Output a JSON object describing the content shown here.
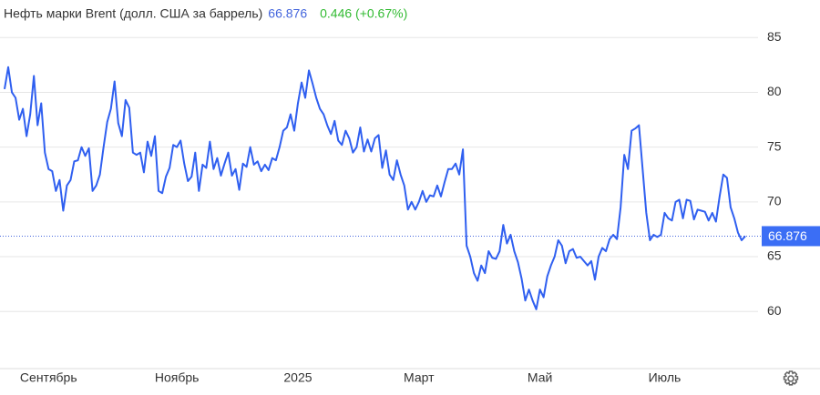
{
  "chart_data": {
    "type": "line",
    "title": "Нефть марки Brent (долл. США за баррель)",
    "last_price": 66.876,
    "change": "0.446 (+0.67%)",
    "color": "#2f5ff0",
    "grid": true,
    "ylim": [
      55.2,
      87.6
    ],
    "yticks": [
      60,
      65,
      70,
      75,
      80,
      85
    ],
    "xlim": [
      0,
      202
    ],
    "xticks": [
      {
        "value": 12,
        "label": "Сентябрь"
      },
      {
        "value": 47,
        "label": "Ноябрь"
      },
      {
        "value": 80,
        "label": "2025"
      },
      {
        "value": 113,
        "label": "Март"
      },
      {
        "value": 146,
        "label": "Май"
      },
      {
        "value": 180,
        "label": "Июль"
      }
    ],
    "values": [
      80.3,
      82.3,
      80,
      79.5,
      77.5,
      78.5,
      76,
      78,
      81.5,
      77,
      79,
      74.5,
      73,
      72.8,
      71,
      72,
      69.2,
      71.5,
      72,
      73.7,
      73.8,
      75,
      74.2,
      74.9,
      71,
      71.5,
      72.5,
      75,
      77.3,
      78.5,
      81,
      77.2,
      76,
      79.3,
      78.6,
      74.5,
      74.3,
      74.5,
      72.7,
      75.5,
      74.2,
      76,
      71,
      70.8,
      72.3,
      73.1,
      75.2,
      75,
      75.6,
      73.5,
      71.9,
      72.3,
      74.5,
      71,
      73.4,
      73.1,
      75.5,
      73,
      74,
      72.4,
      73.5,
      74.5,
      72.4,
      73,
      71.1,
      73.5,
      73.2,
      75,
      73.4,
      73.7,
      72.8,
      73.4,
      72.9,
      74,
      73.8,
      75,
      76.5,
      76.8,
      78,
      76.5,
      79,
      80.9,
      79.5,
      82,
      80.8,
      79.5,
      78.5,
      78,
      77,
      76.2,
      77.4,
      75.6,
      75.2,
      76.5,
      75.8,
      74.5,
      75,
      76.8,
      74.6,
      75.7,
      74.6,
      75.8,
      76.1,
      73.1,
      74.7,
      72.5,
      72,
      73.8,
      72.5,
      71.5,
      69.3,
      70,
      69.3,
      70,
      71,
      70,
      70.6,
      70.5,
      71.5,
      70.5,
      71.8,
      73,
      73,
      73.5,
      72.5,
      74.8,
      66,
      65,
      63.5,
      62.8,
      64.2,
      63.5,
      65.5,
      64.9,
      64.8,
      65.5,
      67.9,
      66.2,
      67,
      65.5,
      64.5,
      63,
      61,
      62,
      61,
      60.2,
      62,
      61.3,
      63.2,
      64.2,
      65,
      66.5,
      66,
      64.4,
      65.5,
      65.7,
      64.9,
      65,
      64.6,
      64.2,
      64.6,
      62.9,
      65,
      65.8,
      65.5,
      66.6,
      67,
      66.6,
      69.5,
      74.3,
      73,
      76.5,
      76.7,
      77,
      73,
      69,
      66.5,
      67,
      66.8,
      67,
      69,
      68.5,
      68.3,
      70,
      70.2,
      68.5,
      70.2,
      70.1,
      68.4,
      69.3,
      69.2,
      69.1,
      68.3,
      69,
      68.2,
      70.5,
      72.5,
      72.2,
      69.5,
      68.5,
      67.2,
      66.5,
      66.876
    ]
  }
}
